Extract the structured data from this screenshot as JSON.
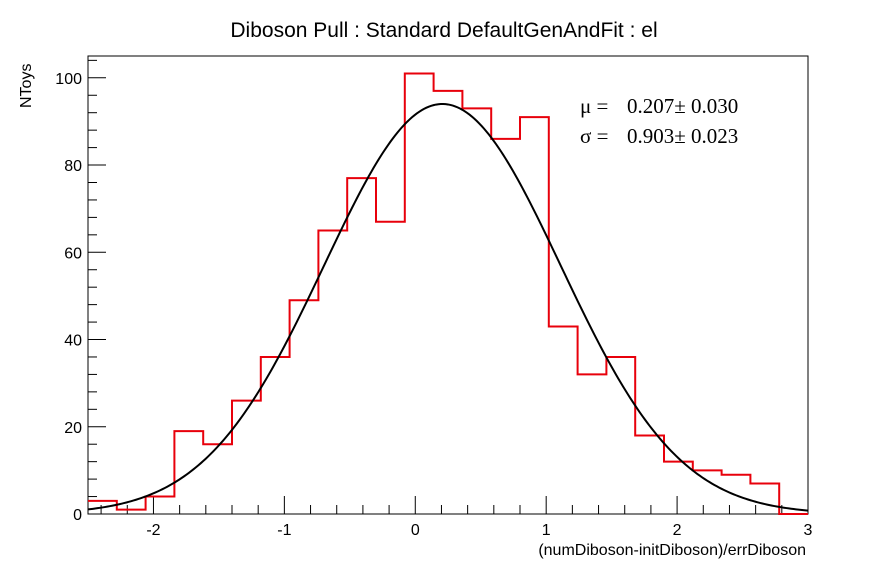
{
  "chart_data": {
    "type": "histogram",
    "title": "Diboson Pull : Standard DefaultGenAndFit : el",
    "xlabel": "(numDiboson-initDiboson)/errDiboson",
    "ylabel": "NToys",
    "xlim": [
      -2.5,
      3.0
    ],
    "ylim": [
      0,
      105
    ],
    "x_ticks": [
      -2,
      -1,
      0,
      1,
      2,
      3
    ],
    "x_tick_labels": [
      "-2",
      "-1",
      "0",
      "1",
      "2",
      "3"
    ],
    "y_ticks": [
      0,
      20,
      40,
      60,
      80,
      100
    ],
    "y_tick_labels": [
      "0",
      "20",
      "40",
      "60",
      "80",
      "100"
    ],
    "grid": false,
    "legend": "none",
    "histogram": {
      "color": "#e8000b",
      "bin_edges": [
        -2.5,
        -2.28,
        -2.06,
        -1.84,
        -1.62,
        -1.4,
        -1.18,
        -0.96,
        -0.74,
        -0.52,
        -0.3,
        -0.08,
        0.14,
        0.36,
        0.58,
        0.8,
        1.02,
        1.24,
        1.46,
        1.68,
        1.9,
        2.12,
        2.34,
        2.56,
        2.78,
        3.0
      ],
      "counts": [
        3,
        1,
        4,
        19,
        16,
        26,
        36,
        49,
        65,
        77,
        67,
        101,
        97,
        93,
        86,
        91,
        43,
        32,
        36,
        18,
        12,
        10,
        9,
        7,
        0
      ]
    },
    "fit": {
      "type": "gaussian",
      "color": "#000000",
      "mean": 0.207,
      "sigma": 0.903,
      "amplitude": 94
    },
    "stats": [
      {
        "label": "μ =",
        "value": "0.207± 0.030"
      },
      {
        "label": "σ =",
        "value": "0.903± 0.023"
      }
    ]
  }
}
